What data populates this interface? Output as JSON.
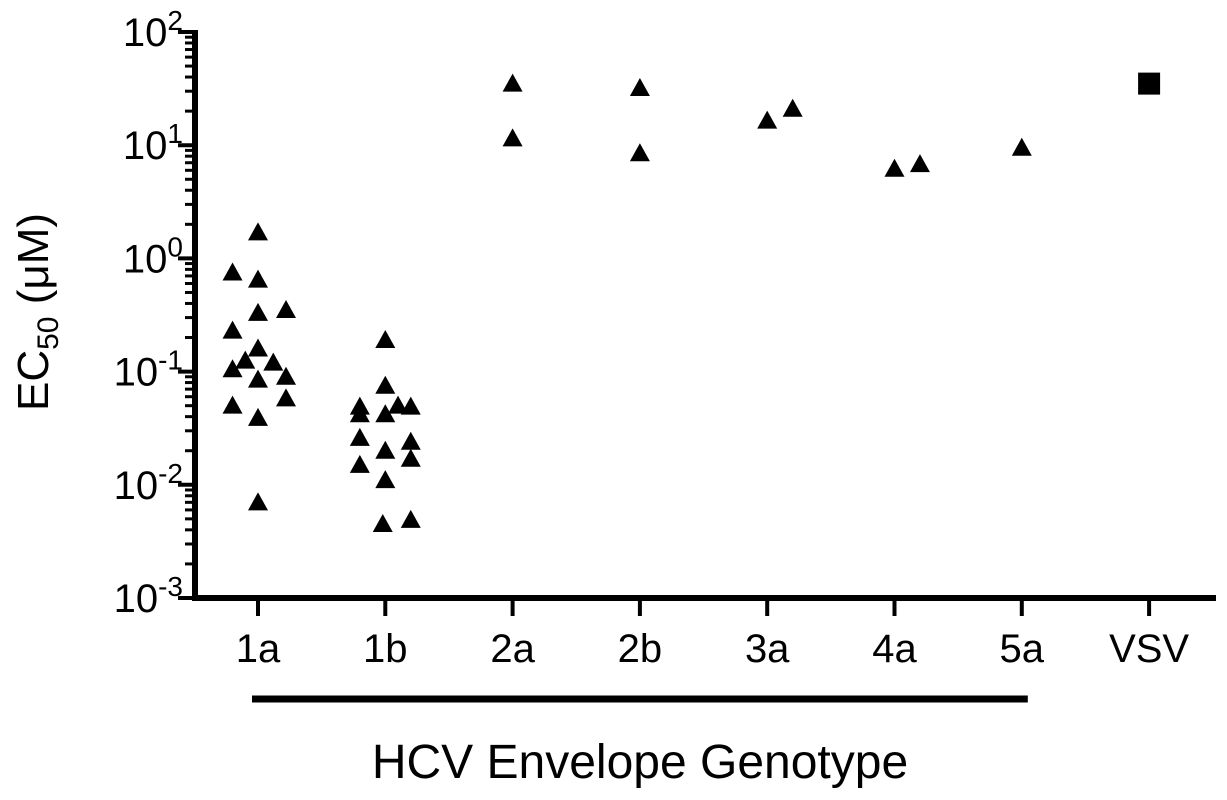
{
  "chart_data": {
    "type": "scatter",
    "title": "",
    "xlabel": "HCV Envelope Genotype",
    "ylabel": {
      "main": "EC",
      "subscript": "50",
      "unit": " (μM)"
    },
    "y_scale": "log",
    "ylim": [
      0.001,
      100
    ],
    "y_ticks": [
      {
        "value": 100,
        "base": "10",
        "exp": "2"
      },
      {
        "value": 10,
        "base": "10",
        "exp": "1"
      },
      {
        "value": 1,
        "base": "10",
        "exp": "0"
      },
      {
        "value": 0.1,
        "base": "10",
        "exp": "-1"
      },
      {
        "value": 0.01,
        "base": "10",
        "exp": "-2"
      },
      {
        "value": 0.001,
        "base": "10",
        "exp": "-3"
      }
    ],
    "categories": [
      "1a",
      "1b",
      "2a",
      "2b",
      "3a",
      "4a",
      "5a",
      "VSV"
    ],
    "bracket_label_span": [
      "1a",
      "5a"
    ],
    "grid": false,
    "legend": "none",
    "marker_color": "#000000",
    "points": [
      {
        "category": "1a",
        "offset": 0.0,
        "y": 1.7,
        "marker": "triangle"
      },
      {
        "category": "1a",
        "offset": -0.2,
        "y": 0.75,
        "marker": "triangle"
      },
      {
        "category": "1a",
        "offset": 0.0,
        "y": 0.65,
        "marker": "triangle"
      },
      {
        "category": "1a",
        "offset": 0.0,
        "y": 0.33,
        "marker": "triangle"
      },
      {
        "category": "1a",
        "offset": 0.22,
        "y": 0.35,
        "marker": "triangle"
      },
      {
        "category": "1a",
        "offset": -0.2,
        "y": 0.23,
        "marker": "triangle"
      },
      {
        "category": "1a",
        "offset": 0.0,
        "y": 0.16,
        "marker": "triangle"
      },
      {
        "category": "1a",
        "offset": -0.1,
        "y": 0.125,
        "marker": "triangle"
      },
      {
        "category": "1a",
        "offset": 0.12,
        "y": 0.12,
        "marker": "triangle"
      },
      {
        "category": "1a",
        "offset": -0.2,
        "y": 0.105,
        "marker": "triangle"
      },
      {
        "category": "1a",
        "offset": 0.0,
        "y": 0.085,
        "marker": "triangle"
      },
      {
        "category": "1a",
        "offset": 0.22,
        "y": 0.09,
        "marker": "triangle"
      },
      {
        "category": "1a",
        "offset": 0.22,
        "y": 0.058,
        "marker": "triangle"
      },
      {
        "category": "1a",
        "offset": -0.2,
        "y": 0.05,
        "marker": "triangle"
      },
      {
        "category": "1a",
        "offset": 0.0,
        "y": 0.039,
        "marker": "triangle"
      },
      {
        "category": "1a",
        "offset": 0.0,
        "y": 0.007,
        "marker": "triangle"
      },
      {
        "category": "1b",
        "offset": 0.0,
        "y": 0.19,
        "marker": "triangle"
      },
      {
        "category": "1b",
        "offset": 0.0,
        "y": 0.075,
        "marker": "triangle"
      },
      {
        "category": "1b",
        "offset": -0.2,
        "y": 0.049,
        "marker": "triangle"
      },
      {
        "category": "1b",
        "offset": 0.1,
        "y": 0.05,
        "marker": "triangle"
      },
      {
        "category": "1b",
        "offset": 0.2,
        "y": 0.049,
        "marker": "triangle"
      },
      {
        "category": "1b",
        "offset": -0.2,
        "y": 0.042,
        "marker": "triangle"
      },
      {
        "category": "1b",
        "offset": 0.0,
        "y": 0.042,
        "marker": "triangle"
      },
      {
        "category": "1b",
        "offset": -0.2,
        "y": 0.026,
        "marker": "triangle"
      },
      {
        "category": "1b",
        "offset": 0.2,
        "y": 0.024,
        "marker": "triangle"
      },
      {
        "category": "1b",
        "offset": 0.0,
        "y": 0.02,
        "marker": "triangle"
      },
      {
        "category": "1b",
        "offset": 0.2,
        "y": 0.017,
        "marker": "triangle"
      },
      {
        "category": "1b",
        "offset": -0.2,
        "y": 0.015,
        "marker": "triangle"
      },
      {
        "category": "1b",
        "offset": 0.0,
        "y": 0.011,
        "marker": "triangle"
      },
      {
        "category": "1b",
        "offset": 0.2,
        "y": 0.0049,
        "marker": "triangle"
      },
      {
        "category": "1b",
        "offset": -0.02,
        "y": 0.0045,
        "marker": "triangle"
      },
      {
        "category": "2a",
        "offset": 0.0,
        "y": 35,
        "marker": "triangle"
      },
      {
        "category": "2a",
        "offset": 0.0,
        "y": 11.5,
        "marker": "triangle"
      },
      {
        "category": "2b",
        "offset": 0.0,
        "y": 32,
        "marker": "triangle"
      },
      {
        "category": "2b",
        "offset": 0.0,
        "y": 8.5,
        "marker": "triangle"
      },
      {
        "category": "3a",
        "offset": 0.0,
        "y": 16.5,
        "marker": "triangle"
      },
      {
        "category": "3a",
        "offset": 0.2,
        "y": 21,
        "marker": "triangle"
      },
      {
        "category": "4a",
        "offset": 0.0,
        "y": 6.2,
        "marker": "triangle"
      },
      {
        "category": "4a",
        "offset": 0.2,
        "y": 6.8,
        "marker": "triangle"
      },
      {
        "category": "5a",
        "offset": 0.0,
        "y": 9.5,
        "marker": "triangle"
      },
      {
        "category": "VSV",
        "offset": 0.0,
        "y": 35,
        "marker": "square"
      }
    ]
  }
}
